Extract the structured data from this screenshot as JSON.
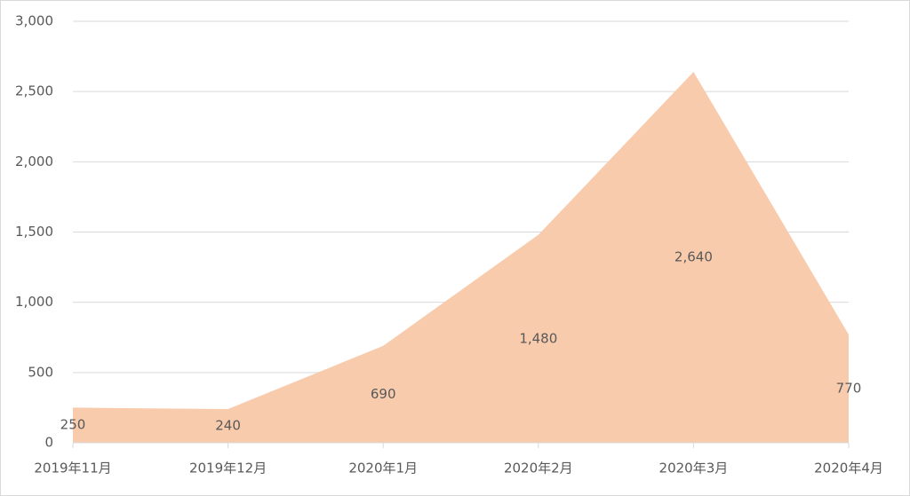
{
  "chart_data": {
    "type": "area",
    "categories": [
      "2019年11月",
      "2019年12月",
      "2020年1月",
      "2020年2月",
      "2020年3月",
      "2020年4月"
    ],
    "values": [
      250,
      240,
      690,
      1480,
      2640,
      770
    ],
    "value_labels": [
      "250",
      "240",
      "690",
      "1,480",
      "2,640",
      "770"
    ],
    "color": "#f8cbad",
    "ylim": [
      0,
      3000
    ],
    "yticks": [
      0,
      500,
      {
        "value": 1000,
        "label": "1,000"
      },
      {
        "value": 1500,
        "label": "1,500"
      },
      {
        "value": 2000,
        "label": "2,000"
      },
      {
        "value": 2500,
        "label": "2,500"
      },
      {
        "value": 3000,
        "label": "3,000"
      }
    ],
    "grid": true
  }
}
